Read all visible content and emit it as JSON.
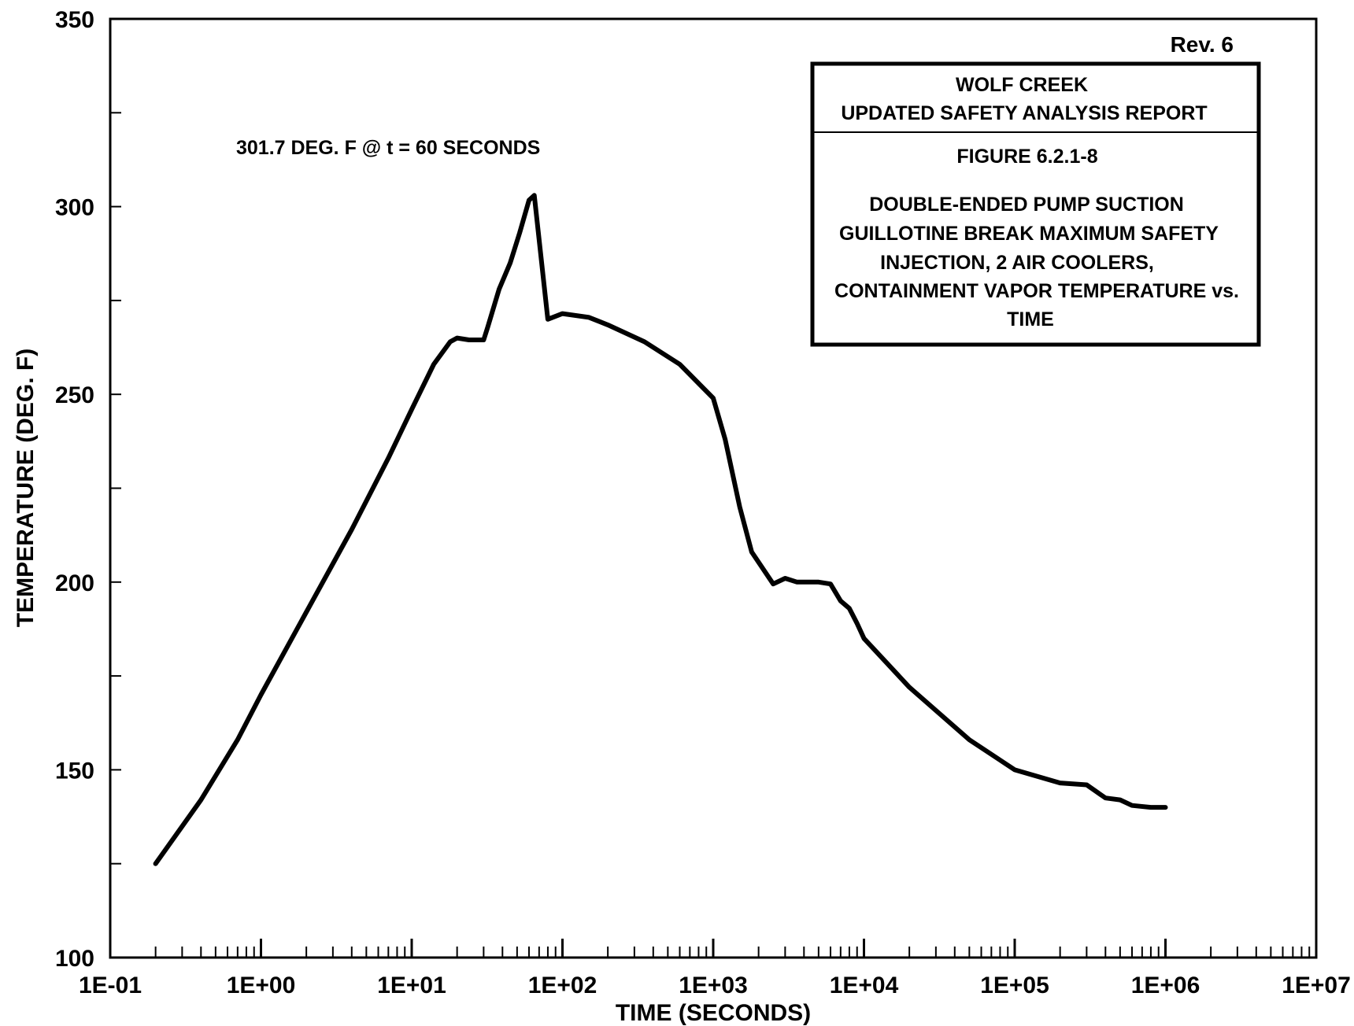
{
  "chart_data": {
    "type": "line",
    "x_scale": "log",
    "title": "",
    "xlabel": "TIME (SECONDS)",
    "ylabel": "TEMPERATURE (DEG. F)",
    "xlim": [
      "1E-01",
      "1E+07"
    ],
    "ylim": [
      100,
      350
    ],
    "x_ticks": [
      "1E-01",
      "1E+00",
      "1E+01",
      "1E+02",
      "1E+03",
      "1E+04",
      "1E+05",
      "1E+06",
      "1E+07"
    ],
    "y_ticks": [
      100,
      150,
      200,
      250,
      300,
      350
    ],
    "grid": false,
    "annotation": "301.7 DEG. F @ t = 60 SECONDS",
    "revision": "Rev. 6",
    "title_block": {
      "org": "WOLF CREEK",
      "report": "UPDATED SAFETY ANALYSIS REPORT",
      "figure": "FIGURE 6.2.1-8",
      "caption_lines": [
        "DOUBLE-ENDED PUMP SUCTION",
        "GUILLOTINE BREAK MAXIMUM SAFETY",
        "INJECTION, 2 AIR COOLERS,",
        "CONTAINMENT VAPOR TEMPERATURE vs.",
        "TIME"
      ]
    },
    "series": [
      {
        "color": "#000000",
        "points": [
          [
            0.2,
            125
          ],
          [
            0.4,
            142
          ],
          [
            0.7,
            158
          ],
          [
            1.0,
            170
          ],
          [
            2.0,
            192
          ],
          [
            4.0,
            214
          ],
          [
            7.0,
            233
          ],
          [
            10.0,
            246
          ],
          [
            14.0,
            258
          ],
          [
            18.0,
            264
          ],
          [
            20.0,
            265
          ],
          [
            24.0,
            264.5
          ],
          [
            30.0,
            264.5
          ],
          [
            32.0,
            268
          ],
          [
            38.0,
            278
          ],
          [
            45.0,
            285
          ],
          [
            52.0,
            293
          ],
          [
            60.0,
            301.7
          ],
          [
            65.0,
            303
          ],
          [
            80.0,
            270
          ],
          [
            100.0,
            271.5
          ],
          [
            150.0,
            270.5
          ],
          [
            200.0,
            268.5
          ],
          [
            350.0,
            264
          ],
          [
            600.0,
            258
          ],
          [
            1000.0,
            249
          ],
          [
            1200.0,
            238
          ],
          [
            1500.0,
            220
          ],
          [
            1800.0,
            208
          ],
          [
            2500.0,
            199.5
          ],
          [
            3000.0,
            201
          ],
          [
            3600.0,
            200
          ],
          [
            5000.0,
            200
          ],
          [
            6000.0,
            199.5
          ],
          [
            7000.0,
            195
          ],
          [
            8000.0,
            193
          ],
          [
            9000.0,
            189
          ],
          [
            10000.0,
            185
          ],
          [
            20000.0,
            172
          ],
          [
            50000.0,
            158
          ],
          [
            100000.0,
            150
          ],
          [
            200000.0,
            146.5
          ],
          [
            300000.0,
            146
          ],
          [
            400000.0,
            142.5
          ],
          [
            500000.0,
            142
          ],
          [
            600000.0,
            140.5
          ],
          [
            800000.0,
            140
          ],
          [
            1000000.0,
            140
          ]
        ]
      }
    ]
  }
}
